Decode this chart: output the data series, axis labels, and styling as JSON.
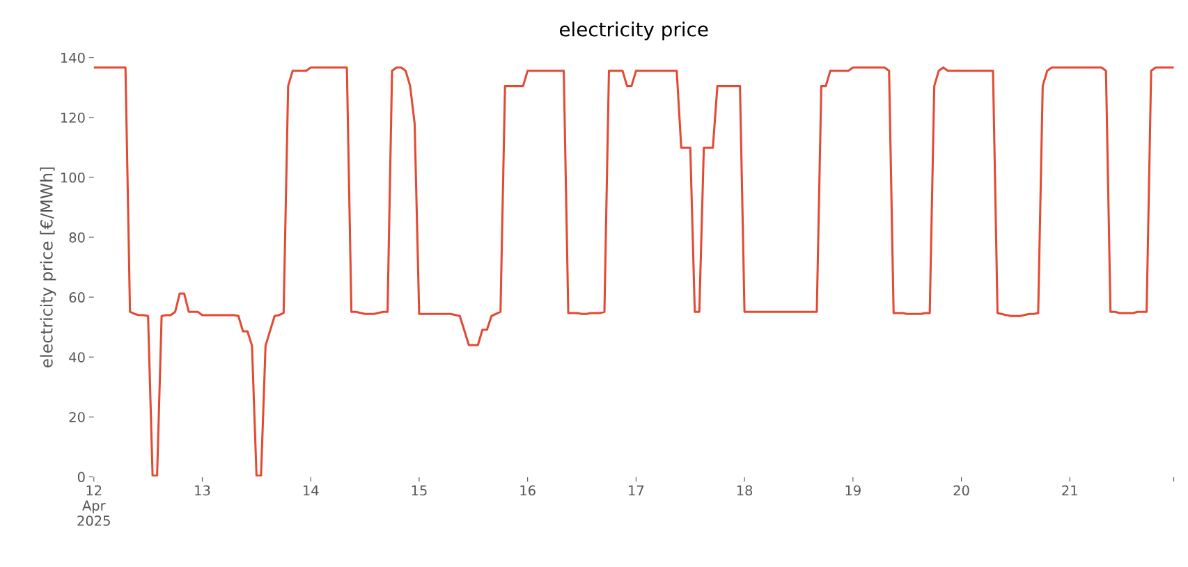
{
  "chart_data": {
    "type": "line",
    "title": "electricity price",
    "ylabel": "electricity price [€/MWh]",
    "x": [
      "2025-04-12T00:00",
      "2025-04-12T07:00",
      "2025-04-12T08:00",
      "2025-04-12T09:00",
      "2025-04-12T10:00",
      "2025-04-12T11:00",
      "2025-04-12T12:00",
      "2025-04-12T13:00",
      "2025-04-12T14:00",
      "2025-04-12T15:00",
      "2025-04-12T16:00",
      "2025-04-12T17:00",
      "2025-04-12T18:00",
      "2025-04-12T19:00",
      "2025-04-12T20:00",
      "2025-04-12T21:00",
      "2025-04-12T23:00",
      "2025-04-13T00:00",
      "2025-04-13T07:00",
      "2025-04-13T08:00",
      "2025-04-13T09:00",
      "2025-04-13T10:00",
      "2025-04-13T11:00",
      "2025-04-13T12:00",
      "2025-04-13T13:00",
      "2025-04-13T14:00",
      "2025-04-13T16:00",
      "2025-04-13T17:00",
      "2025-04-13T18:00",
      "2025-04-13T19:00",
      "2025-04-13T20:00",
      "2025-04-13T23:00",
      "2025-04-14T00:00",
      "2025-04-14T08:00",
      "2025-04-14T09:00",
      "2025-04-14T10:00",
      "2025-04-14T12:00",
      "2025-04-14T14:00",
      "2025-04-14T16:00",
      "2025-04-14T17:00",
      "2025-04-14T18:00",
      "2025-04-14T19:00",
      "2025-04-14T20:00",
      "2025-04-14T21:00",
      "2025-04-14T22:00",
      "2025-04-14T23:00",
      "2025-04-15T00:00",
      "2025-04-15T07:00",
      "2025-04-15T09:00",
      "2025-04-15T11:00",
      "2025-04-15T13:00",
      "2025-04-15T14:00",
      "2025-04-15T15:00",
      "2025-04-15T16:00",
      "2025-04-15T18:00",
      "2025-04-15T19:00",
      "2025-04-15T23:00",
      "2025-04-16T00:00",
      "2025-04-16T08:00",
      "2025-04-16T09:00",
      "2025-04-16T11:00",
      "2025-04-16T12:00",
      "2025-04-16T13:00",
      "2025-04-16T14:00",
      "2025-04-16T16:00",
      "2025-04-16T17:00",
      "2025-04-16T18:00",
      "2025-04-16T21:00",
      "2025-04-16T22:00",
      "2025-04-16T23:00",
      "2025-04-17T00:00",
      "2025-04-17T09:00",
      "2025-04-17T10:00",
      "2025-04-17T12:00",
      "2025-04-17T13:00",
      "2025-04-17T14:00",
      "2025-04-17T15:00",
      "2025-04-17T17:00",
      "2025-04-17T18:00",
      "2025-04-17T23:00",
      "2025-04-18T00:00",
      "2025-04-18T16:00",
      "2025-04-18T17:00",
      "2025-04-18T18:00",
      "2025-04-18T19:00",
      "2025-04-18T23:00",
      "2025-04-19T00:00",
      "2025-04-19T07:00",
      "2025-04-19T08:00",
      "2025-04-19T09:00",
      "2025-04-19T11:00",
      "2025-04-19T12:00",
      "2025-04-19T15:00",
      "2025-04-19T16:00",
      "2025-04-19T17:00",
      "2025-04-19T18:00",
      "2025-04-19T19:00",
      "2025-04-19T20:00",
      "2025-04-19T21:00",
      "2025-04-20T07:00",
      "2025-04-20T08:00",
      "2025-04-20T10:00",
      "2025-04-20T11:00",
      "2025-04-20T13:00",
      "2025-04-20T15:00",
      "2025-04-20T16:00",
      "2025-04-20T17:00",
      "2025-04-20T18:00",
      "2025-04-20T19:00",
      "2025-04-20T20:00",
      "2025-04-21T07:00",
      "2025-04-21T08:00",
      "2025-04-21T09:00",
      "2025-04-21T10:00",
      "2025-04-21T11:00",
      "2025-04-21T14:00",
      "2025-04-21T15:00",
      "2025-04-21T17:00",
      "2025-04-21T18:00",
      "2025-04-21T19:00",
      "2025-04-21T23:00"
    ],
    "series": [
      {
        "color": "#e24a33",
        "values": [
          136.7,
          136.7,
          55.1,
          54.4,
          54.0,
          54.0,
          53.7,
          0.4,
          0.4,
          53.7,
          54.0,
          54.0,
          55.1,
          61.2,
          61.2,
          55.1,
          55.1,
          54.0,
          54.0,
          53.7,
          48.6,
          48.6,
          43.8,
          0.4,
          0.4,
          43.8,
          53.7,
          54.0,
          54.7,
          130.5,
          135.6,
          135.6,
          136.7,
          136.7,
          55.1,
          55.1,
          54.4,
          54.4,
          55.1,
          55.1,
          135.6,
          136.7,
          136.7,
          135.6,
          130.5,
          117.9,
          54.4,
          54.4,
          53.7,
          44.0,
          44.0,
          49.1,
          49.1,
          53.7,
          55.1,
          130.5,
          130.5,
          135.6,
          135.6,
          54.7,
          54.7,
          54.4,
          54.4,
          54.7,
          54.7,
          55.1,
          135.6,
          135.6,
          130.5,
          130.5,
          135.6,
          135.6,
          109.9,
          109.9,
          55.1,
          55.1,
          109.9,
          109.9,
          130.5,
          130.5,
          55.1,
          55.1,
          130.5,
          130.5,
          135.6,
          135.6,
          136.7,
          136.7,
          135.6,
          54.7,
          54.7,
          54.4,
          54.4,
          54.7,
          54.7,
          130.5,
          135.6,
          136.7,
          135.6,
          135.6,
          54.7,
          54.0,
          53.7,
          53.7,
          54.4,
          54.4,
          54.7,
          130.5,
          135.6,
          136.7,
          136.7,
          135.6,
          55.1,
          55.1,
          54.7,
          54.7,
          55.1,
          55.1,
          135.6,
          136.7,
          136.7
        ]
      }
    ],
    "xlim": [
      "2025-04-12T00:00",
      "2025-04-21T23:00"
    ],
    "xticks": [
      {
        "value": "2025-04-12T00:00",
        "label": "12\nApr\n2025"
      },
      {
        "value": "2025-04-13T00:00",
        "label": "13"
      },
      {
        "value": "2025-04-14T00:00",
        "label": "14"
      },
      {
        "value": "2025-04-15T00:00",
        "label": "15"
      },
      {
        "value": "2025-04-16T00:00",
        "label": "16"
      },
      {
        "value": "2025-04-17T00:00",
        "label": "17"
      },
      {
        "value": "2025-04-18T00:00",
        "label": "18"
      },
      {
        "value": "2025-04-19T00:00",
        "label": "19"
      },
      {
        "value": "2025-04-20T00:00",
        "label": "20"
      },
      {
        "value": "2025-04-21T00:00",
        "label": "21"
      },
      {
        "value": "2025-04-21T23:00",
        "label": null
      }
    ],
    "ylim": [
      0,
      140
    ],
    "yticks": [
      0,
      20,
      40,
      60,
      80,
      100,
      120,
      140
    ],
    "grid": false,
    "marker": "none",
    "line_style": "solid"
  }
}
